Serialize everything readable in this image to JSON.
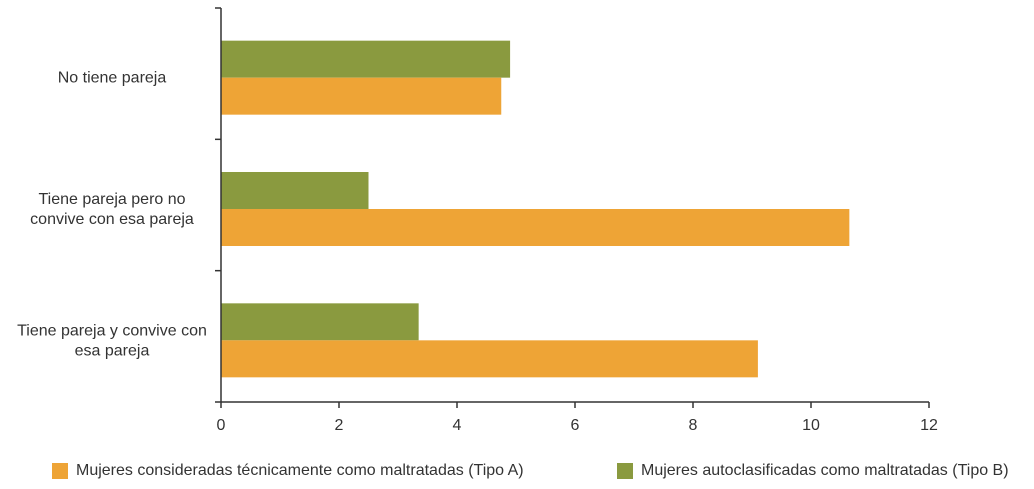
{
  "chart_data": {
    "type": "bar",
    "orientation": "horizontal",
    "categories": [
      [
        "No tiene pareja"
      ],
      [
        "Tiene pareja pero no",
        "convive con esa pareja"
      ],
      [
        "Tiene pareja y convive con",
        "esa pareja"
      ]
    ],
    "series": [
      {
        "name": "Mujeres autoclasificadas como maltratadas (Tipo B)",
        "color": "#8a9a3f",
        "values": [
          4.9,
          2.5,
          3.35
        ]
      },
      {
        "name": "Mujeres consideradas técnicamente como maltratadas (Tipo A)",
        "color": "#eea436",
        "values": [
          4.75,
          10.65,
          9.1
        ]
      }
    ],
    "xlim": [
      0,
      12
    ],
    "xticks": [
      "0",
      "2",
      "4",
      "6",
      "8",
      "10",
      "12"
    ],
    "grid": false,
    "legend_position": "bottom"
  }
}
